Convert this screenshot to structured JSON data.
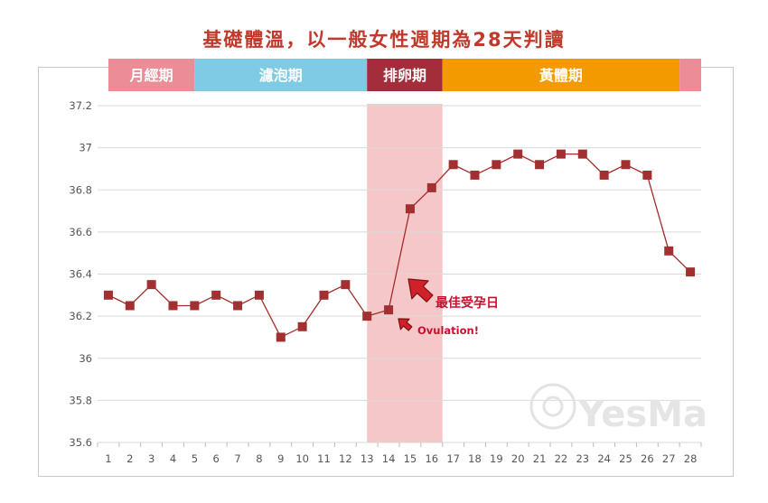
{
  "title": "基礎體溫，以一般女性週期為28天判讀",
  "phases": [
    {
      "label": "月經期",
      "from": 1,
      "to": 5,
      "color": "#ec8c96"
    },
    {
      "label": "濾泡期",
      "from": 5,
      "to": 13,
      "color": "#7fcbe6"
    },
    {
      "label": "排卵期",
      "from": 13,
      "to": 16.5,
      "color": "#a32d3a"
    },
    {
      "label": "黃體期",
      "from": 16.5,
      "to": 27.5,
      "color": "#f39a00"
    },
    {
      "label": "",
      "from": 27.5,
      "to": 28.5,
      "color": "#ec8c96"
    }
  ],
  "highlight": {
    "from": 13,
    "to": 16.5,
    "color": "#f6c7c9"
  },
  "annotations": [
    {
      "text": "最佳受孕日",
      "day": 15,
      "value": 36.36,
      "color": "#c8102e"
    },
    {
      "text": "Ovulation!",
      "day": 14,
      "value": 36.16,
      "color": "#c8102e"
    }
  ],
  "watermark": "YesMa",
  "colors": {
    "line": "#a52a2a",
    "marker": "#a23030",
    "grid": "#d9d9d9",
    "tick_text": "#555555"
  },
  "chart_data": {
    "type": "line",
    "title": "基礎體溫，以一般女性週期為28天判讀",
    "x": [
      1,
      2,
      3,
      4,
      5,
      6,
      7,
      8,
      9,
      10,
      11,
      12,
      13,
      14,
      15,
      16,
      17,
      18,
      19,
      20,
      21,
      22,
      23,
      24,
      25,
      26,
      27,
      28
    ],
    "series": [
      {
        "values": [
          36.3,
          36.25,
          36.35,
          36.25,
          36.25,
          36.3,
          36.25,
          36.3,
          36.1,
          36.15,
          36.3,
          36.35,
          36.2,
          36.23,
          36.71,
          36.81,
          36.92,
          36.87,
          36.92,
          36.97,
          36.92,
          36.97,
          36.97,
          36.87,
          36.92,
          36.87,
          36.51,
          36.41
        ]
      }
    ],
    "xlabel": "",
    "ylabel": "",
    "xlim": [
      1,
      28
    ],
    "ylim": [
      35.6,
      37.2
    ],
    "yticks": [
      "37.2",
      "37",
      "36.8",
      "36.6",
      "36.4",
      "36.2",
      "36",
      "35.8",
      "35.6"
    ],
    "grid": true,
    "marker": "square"
  }
}
